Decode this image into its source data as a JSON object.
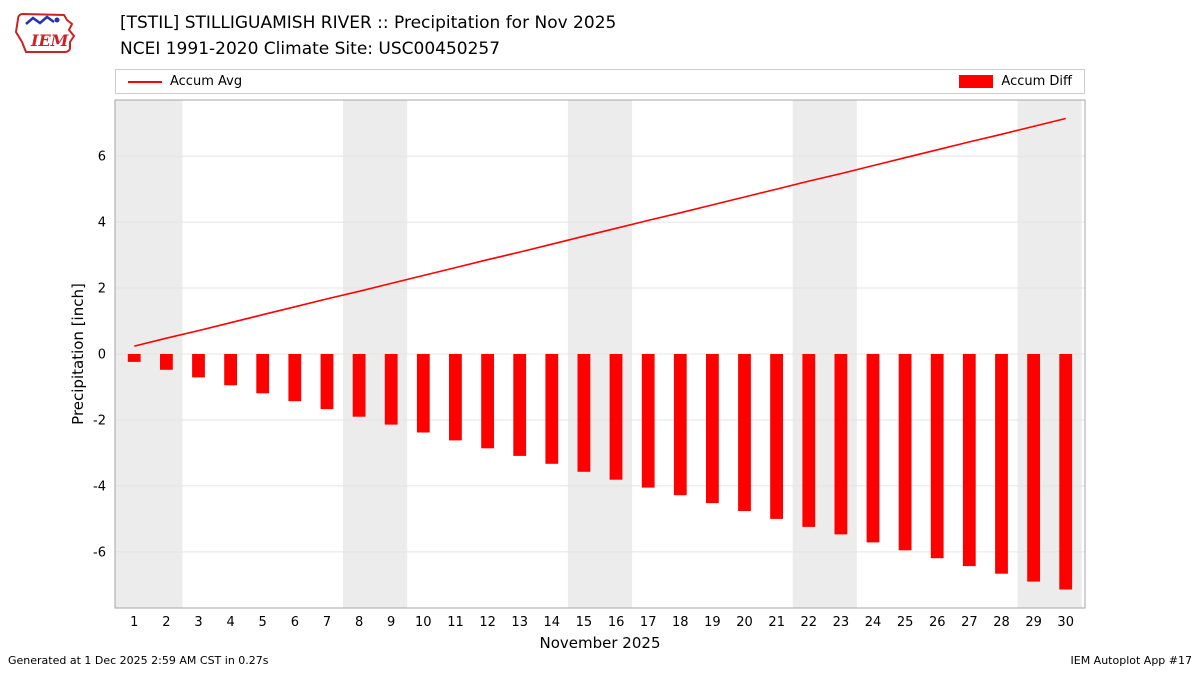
{
  "header": {
    "title": "[TSTIL] STILLIGUAMISH RIVER :: Precipitation for Nov 2025",
    "subtitle": "NCEI 1991-2020 Climate Site: USC00450257"
  },
  "logo": {
    "text": "IEM"
  },
  "legend": {
    "items": [
      {
        "label": "Accum Avg",
        "type": "line",
        "color": "#ff0000"
      },
      {
        "label": "Accum Diff",
        "type": "bar",
        "color": "#ff0000"
      }
    ]
  },
  "chart_data": {
    "type": "combo",
    "title": "[TSTIL] STILLIGUAMISH RIVER :: Precipitation for Nov 2025",
    "subtitle": "NCEI 1991-2020 Climate Site: USC00450257",
    "xlabel": "November 2025",
    "ylabel": "Precipitation [inch]",
    "x": [
      1,
      2,
      3,
      4,
      5,
      6,
      7,
      8,
      9,
      10,
      11,
      12,
      13,
      14,
      15,
      16,
      17,
      18,
      19,
      20,
      21,
      22,
      23,
      24,
      25,
      26,
      27,
      28,
      29,
      30
    ],
    "series": [
      {
        "name": "Accum Avg",
        "type": "line",
        "color": "#ff0000",
        "values": [
          0.24,
          0.48,
          0.71,
          0.95,
          1.19,
          1.43,
          1.67,
          1.9,
          2.14,
          2.38,
          2.62,
          2.86,
          3.09,
          3.33,
          3.57,
          3.81,
          4.05,
          4.28,
          4.52,
          4.76,
          5.0,
          5.24,
          5.47,
          5.71,
          5.95,
          6.19,
          6.43,
          6.66,
          6.9,
          7.14
        ]
      },
      {
        "name": "Accum Diff",
        "type": "bar",
        "color": "#ff0000",
        "values": [
          -0.24,
          -0.48,
          -0.71,
          -0.95,
          -1.19,
          -1.43,
          -1.67,
          -1.9,
          -2.14,
          -2.38,
          -2.62,
          -2.86,
          -3.09,
          -3.33,
          -3.57,
          -3.81,
          -4.05,
          -4.28,
          -4.52,
          -4.76,
          -5.0,
          -5.24,
          -5.47,
          -5.71,
          -5.95,
          -6.19,
          -6.43,
          -6.66,
          -6.9,
          -7.14
        ]
      }
    ],
    "xlim": [
      0.4,
      30.6
    ],
    "ylim": [
      -7.7,
      7.7
    ],
    "yticks": [
      -6,
      -4,
      -2,
      0,
      2,
      4,
      6
    ],
    "weekend_bands": [
      [
        0.4,
        2.5
      ],
      [
        7.5,
        9.5
      ],
      [
        14.5,
        16.5
      ],
      [
        21.5,
        23.5
      ],
      [
        28.5,
        30.5
      ]
    ],
    "band_color": "#ececec",
    "grid_color": "#e4e4e4",
    "border_color": "#a6a6a6",
    "legend_position": "top",
    "grid": true
  },
  "footer": {
    "left": "Generated at 1 Dec 2025 2:59 AM CST in 0.27s",
    "right": "IEM Autoplot App #17"
  }
}
